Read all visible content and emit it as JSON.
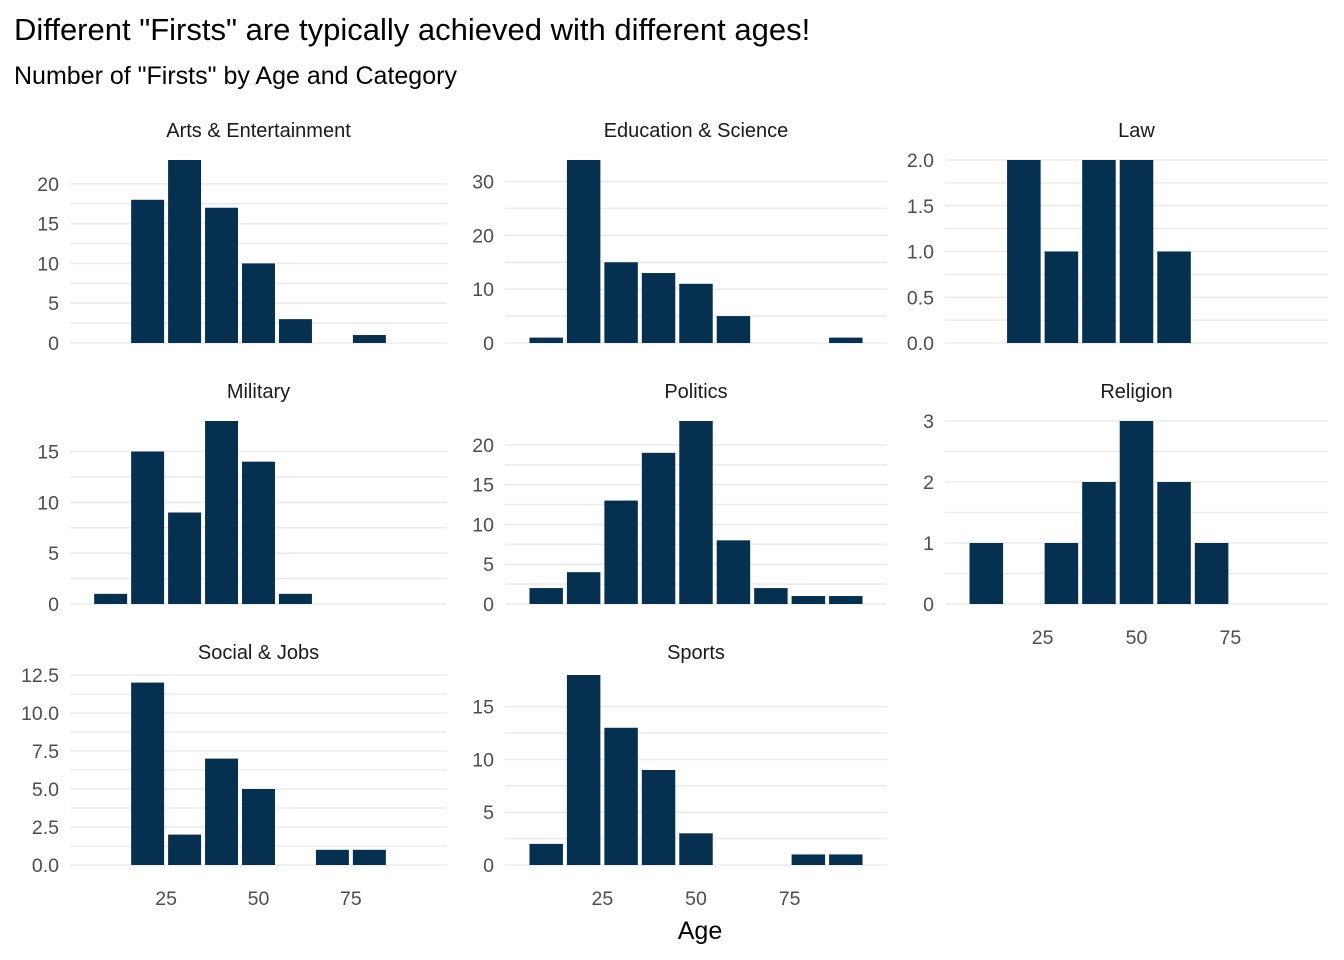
{
  "chart_data": {
    "type": "bar",
    "title": "Different \"Firsts\" are typically achieved with different ages!",
    "subtitle": "Number of \"Firsts\" by Age and Category",
    "xlabel": "Age",
    "ylabel": "",
    "bar_color": "#05304f",
    "background": "#ffffff",
    "grid_color": "#ebebeb",
    "grid": true,
    "x_ticks": [
      25,
      50,
      75
    ],
    "xlim": [
      -1,
      101
    ],
    "x": [
      10,
      20,
      30,
      40,
      50,
      60,
      70,
      80,
      90
    ],
    "panels": [
      {
        "name": "Arts & Entertainment",
        "values": [
          0,
          18,
          23,
          17,
          10,
          3,
          0,
          1,
          0
        ],
        "y_ticks": [
          0,
          5,
          10,
          15,
          20
        ],
        "y_tick_labels": [
          "0",
          "5",
          "10",
          "15",
          "20"
        ],
        "ylim": [
          0,
          23
        ]
      },
      {
        "name": "Education & Science",
        "values": [
          1,
          34,
          15,
          13,
          11,
          5,
          0,
          0,
          1
        ],
        "y_ticks": [
          0,
          10,
          20,
          30
        ],
        "y_tick_labels": [
          "0",
          "10",
          "20",
          "30"
        ],
        "ylim": [
          0,
          34
        ]
      },
      {
        "name": "Law",
        "values": [
          0,
          2,
          1,
          2,
          2,
          1,
          0,
          0,
          0
        ],
        "y_ticks": [
          0,
          0.5,
          1,
          1.5,
          2
        ],
        "y_tick_labels": [
          "0.0",
          "0.5",
          "1.0",
          "1.5",
          "2.0"
        ],
        "ylim": [
          0,
          2
        ]
      },
      {
        "name": "Military",
        "values": [
          1,
          15,
          9,
          18,
          14,
          1,
          0,
          0,
          0
        ],
        "y_ticks": [
          0,
          5,
          10,
          15
        ],
        "y_tick_labels": [
          "0",
          "5",
          "10",
          "15"
        ],
        "ylim": [
          0,
          18
        ]
      },
      {
        "name": "Politics",
        "values": [
          2,
          4,
          13,
          19,
          23,
          8,
          2,
          1,
          1
        ],
        "y_ticks": [
          0,
          5,
          10,
          15,
          20
        ],
        "y_tick_labels": [
          "0",
          "5",
          "10",
          "15",
          "20"
        ],
        "ylim": [
          0,
          23
        ]
      },
      {
        "name": "Religion",
        "values": [
          1,
          0,
          1,
          2,
          3,
          2,
          1,
          0,
          0
        ],
        "y_ticks": [
          0,
          1,
          2,
          3
        ],
        "y_tick_labels": [
          "0",
          "1",
          "2",
          "3"
        ],
        "ylim": [
          0,
          3
        ]
      },
      {
        "name": "Social & Jobs",
        "values": [
          0,
          12,
          2,
          7,
          5,
          0,
          1,
          1,
          0
        ],
        "y_ticks": [
          0,
          2.5,
          5,
          7.5,
          10,
          12.5
        ],
        "y_tick_labels": [
          "0.0",
          "2.5",
          "5.0",
          "7.5",
          "10.0",
          "12.5"
        ],
        "ylim": [
          0,
          12.5
        ]
      },
      {
        "name": "Sports",
        "values": [
          2,
          18,
          13,
          9,
          3,
          0,
          0,
          1,
          1
        ],
        "y_ticks": [
          0,
          5,
          10,
          15
        ],
        "y_tick_labels": [
          "0",
          "5",
          "10",
          "15"
        ],
        "ylim": [
          0,
          18
        ]
      }
    ]
  }
}
